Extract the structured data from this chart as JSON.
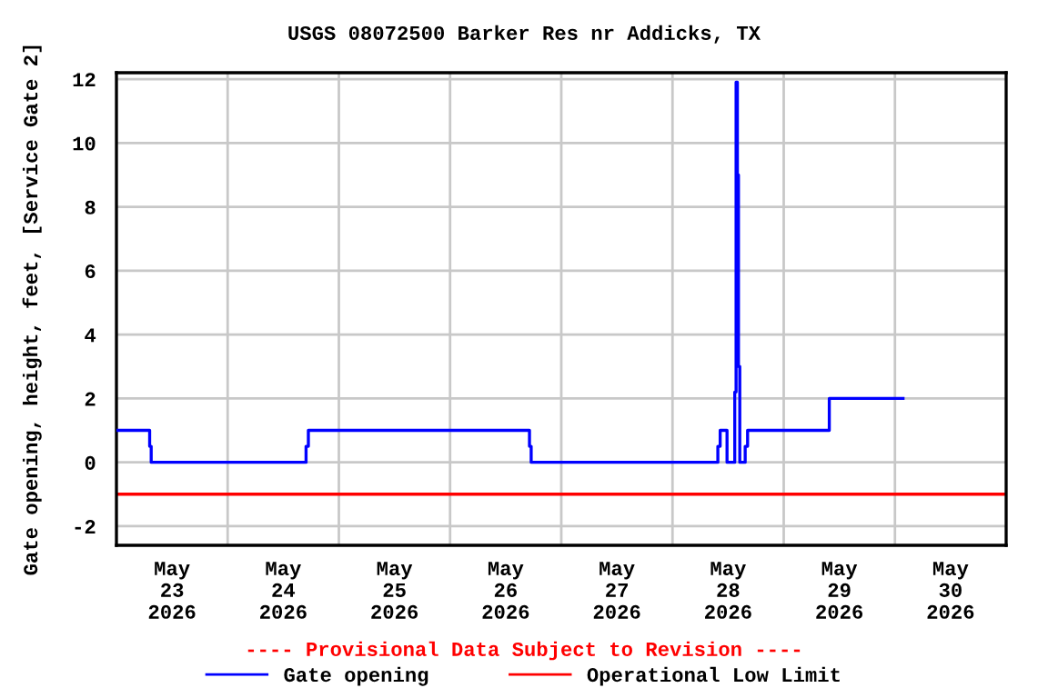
{
  "chart_data": {
    "type": "step",
    "title": "USGS 08072500 Barker Res nr Addicks, TX",
    "ylabel": "Gate opening, height, feet, [Service Gate 2]",
    "x": [
      "2026-05-23T00:00",
      "2026-05-23T07:10",
      "2026-05-23T07:30",
      "2026-05-24T16:55",
      "2026-05-24T17:25",
      "2026-05-26T17:08",
      "2026-05-26T17:30",
      "2026-05-28T09:47",
      "2026-05-28T10:17",
      "2026-05-28T11:46",
      "2026-05-28T13:26",
      "2026-05-28T13:43",
      "2026-05-28T14:00",
      "2026-05-28T14:14",
      "2026-05-28T14:31",
      "2026-05-28T15:41",
      "2026-05-28T16:12",
      "2026-05-29T09:50",
      "2026-05-30T01:45"
    ],
    "series": [
      {
        "name": "Gate opening",
        "color": "#0000ff",
        "values": [
          1,
          0.5,
          0,
          0.5,
          1,
          0.5,
          0,
          0.5,
          1,
          0,
          2.2,
          11.9,
          9,
          3,
          0,
          0.5,
          1,
          2,
          2
        ]
      }
    ],
    "ref_lines": [
      {
        "axis": "y",
        "value": -1,
        "label": "Operational Low Limit",
        "color": "#ff0000"
      }
    ],
    "annotations": [
      "---- Provisional Data Subject to Revision ----"
    ],
    "xlim": [
      "2026-05-23T00:00",
      "2026-05-31T00:00"
    ],
    "xticks": [
      {
        "value": "2026-05-23T12:00",
        "label": "May\n23\n2026"
      },
      {
        "value": "2026-05-24T12:00",
        "label": "May\n24\n2026"
      },
      {
        "value": "2026-05-25T12:00",
        "label": "May\n25\n2026"
      },
      {
        "value": "2026-05-26T12:00",
        "label": "May\n26\n2026"
      },
      {
        "value": "2026-05-27T12:00",
        "label": "May\n27\n2026"
      },
      {
        "value": "2026-05-28T12:00",
        "label": "May\n28\n2026"
      },
      {
        "value": "2026-05-29T12:00",
        "label": "May\n29\n2026"
      },
      {
        "value": "2026-05-30T12:00",
        "label": "May\n30\n2026"
      },
      {
        "value": "2026-05-24T00:00",
        "label": null
      },
      {
        "value": "2026-05-25T00:00",
        "label": null
      },
      {
        "value": "2026-05-26T00:00",
        "label": null
      },
      {
        "value": "2026-05-27T00:00",
        "label": null
      },
      {
        "value": "2026-05-28T00:00",
        "label": null
      },
      {
        "value": "2026-05-29T00:00",
        "label": null
      },
      {
        "value": "2026-05-30T00:00",
        "label": null
      }
    ],
    "ylim": [
      -2.6,
      12.2
    ],
    "yticks": [
      -2,
      0,
      2,
      4,
      6,
      8,
      10,
      12
    ],
    "grid": true,
    "legend": "bottom"
  }
}
